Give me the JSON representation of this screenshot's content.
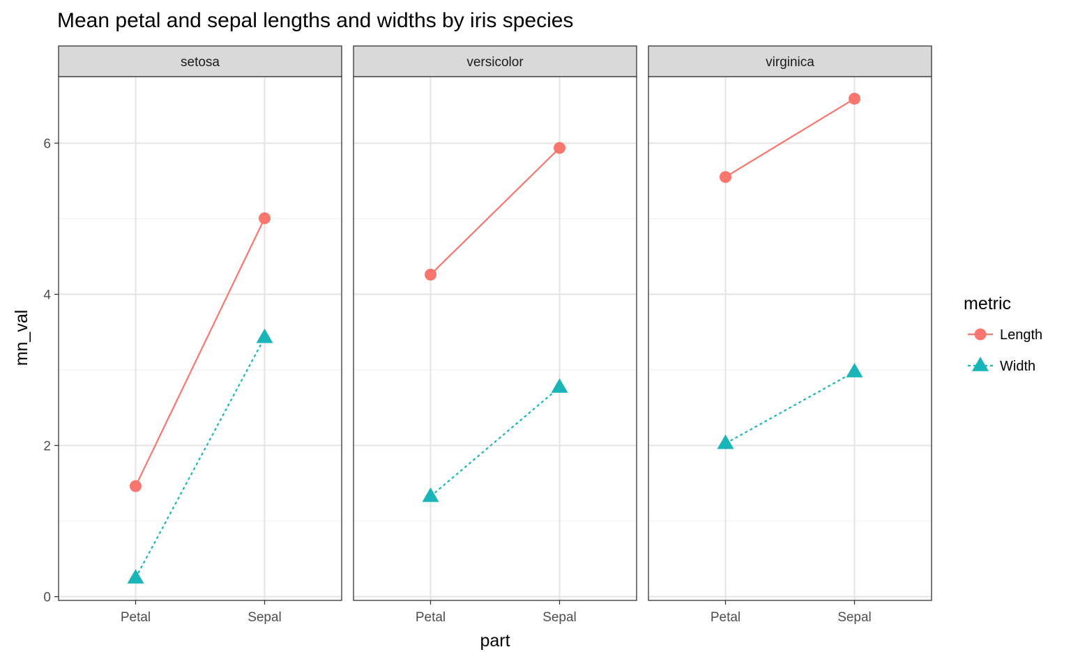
{
  "chart_data": {
    "type": "line",
    "title": "Mean petal and sepal lengths and widths by iris species",
    "xlabel": "part",
    "ylabel": "mn_val",
    "categories": [
      "Petal",
      "Sepal"
    ],
    "y_ticks": [
      "0",
      "2",
      "4",
      "6"
    ],
    "y_tick_values": [
      0,
      2,
      4,
      6
    ],
    "ylim": [
      -0.05,
      6.88
    ],
    "grid": true,
    "facets": [
      {
        "name": "setosa",
        "series": [
          {
            "name": "Length",
            "values": [
              1.462,
              5.006
            ]
          },
          {
            "name": "Width",
            "values": [
              0.246,
              3.428
            ]
          }
        ]
      },
      {
        "name": "versicolor",
        "series": [
          {
            "name": "Length",
            "values": [
              4.26,
              5.936
            ]
          },
          {
            "name": "Width",
            "values": [
              1.326,
              2.77
            ]
          }
        ]
      },
      {
        "name": "virginica",
        "series": [
          {
            "name": "Length",
            "values": [
              5.552,
              6.588
            ]
          },
          {
            "name": "Width",
            "values": [
              2.026,
              2.974
            ]
          }
        ]
      }
    ],
    "legend": {
      "title": "metric",
      "placement": "right",
      "entries": [
        {
          "name": "Length",
          "color": "#F8766D",
          "shape": "circle",
          "line": "solid"
        },
        {
          "name": "Width",
          "color": "#19B5B9",
          "shape": "triangle",
          "line": "dotted"
        }
      ]
    }
  }
}
